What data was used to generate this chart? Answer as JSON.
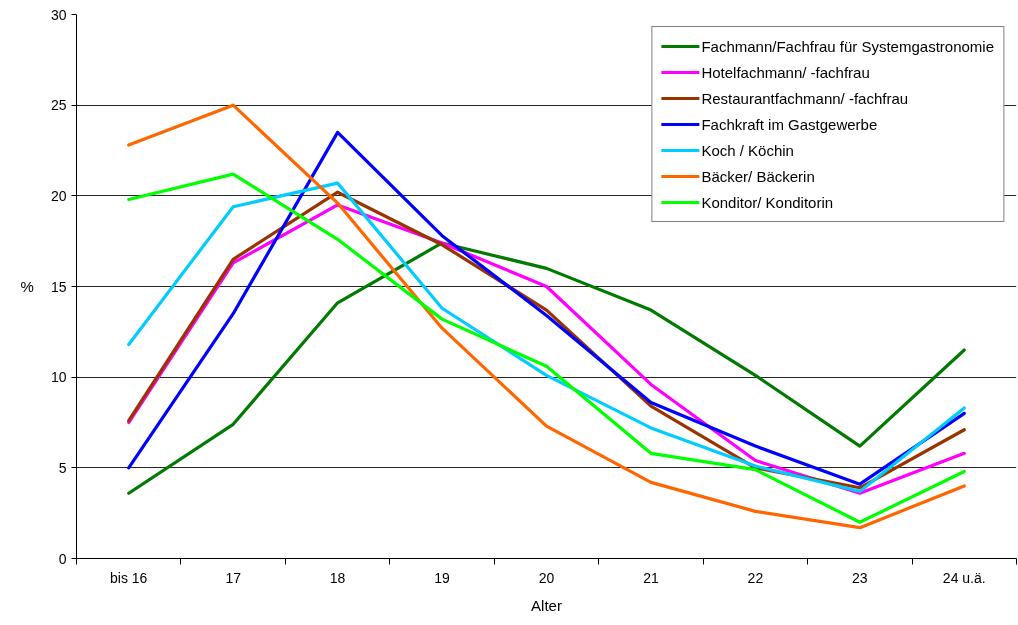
{
  "chart_data": {
    "type": "line",
    "xlabel": "Alter",
    "ylabel": "%",
    "categories": [
      "bis 16",
      "17",
      "18",
      "19",
      "20",
      "21",
      "22",
      "23",
      "24 u.ä."
    ],
    "ylim": [
      0,
      30
    ],
    "yticks": [
      0,
      5,
      10,
      15,
      20,
      25,
      30
    ],
    "grid": "y",
    "legend": "top right",
    "line_style": "solid",
    "series": [
      {
        "name": "Fachmann/Fachfrau für Systemgastronomie",
        "color": "#007a00",
        "values": [
          3.6,
          7.4,
          14.1,
          17.4,
          16.0,
          13.7,
          10.1,
          6.2,
          11.5
        ]
      },
      {
        "name": "Hotelfachmann/ -fachfrau",
        "color": "#ff00ff",
        "values": [
          7.5,
          16.3,
          19.5,
          17.4,
          15.0,
          9.6,
          5.4,
          3.6,
          5.8
        ]
      },
      {
        "name": "Restaurantfachmann/ -fachfrau",
        "color": "#993300",
        "values": [
          7.6,
          16.5,
          20.2,
          17.3,
          13.7,
          8.4,
          5.0,
          3.9,
          7.1
        ]
      },
      {
        "name": "Fachkraft im Gastgewerbe",
        "color": "#0000ff",
        "values": [
          5.0,
          13.5,
          23.5,
          17.8,
          13.4,
          8.6,
          6.2,
          4.1,
          8.0
        ]
      },
      {
        "name": "Koch / Köchin",
        "color": "#00ccff",
        "values": [
          11.8,
          19.4,
          20.7,
          13.8,
          10.1,
          7.2,
          5.1,
          3.7,
          8.3
        ]
      },
      {
        "name": "Bäcker/ Bäckerin",
        "color": "#ff6600",
        "values": [
          22.8,
          25.0,
          19.6,
          12.7,
          7.3,
          4.2,
          2.6,
          1.7,
          4.0
        ]
      },
      {
        "name": "Konditor/ Konditorin",
        "color": "#00ff00",
        "values": [
          19.8,
          21.2,
          17.6,
          13.2,
          10.6,
          5.8,
          4.9,
          2.0,
          4.8
        ]
      }
    ]
  }
}
